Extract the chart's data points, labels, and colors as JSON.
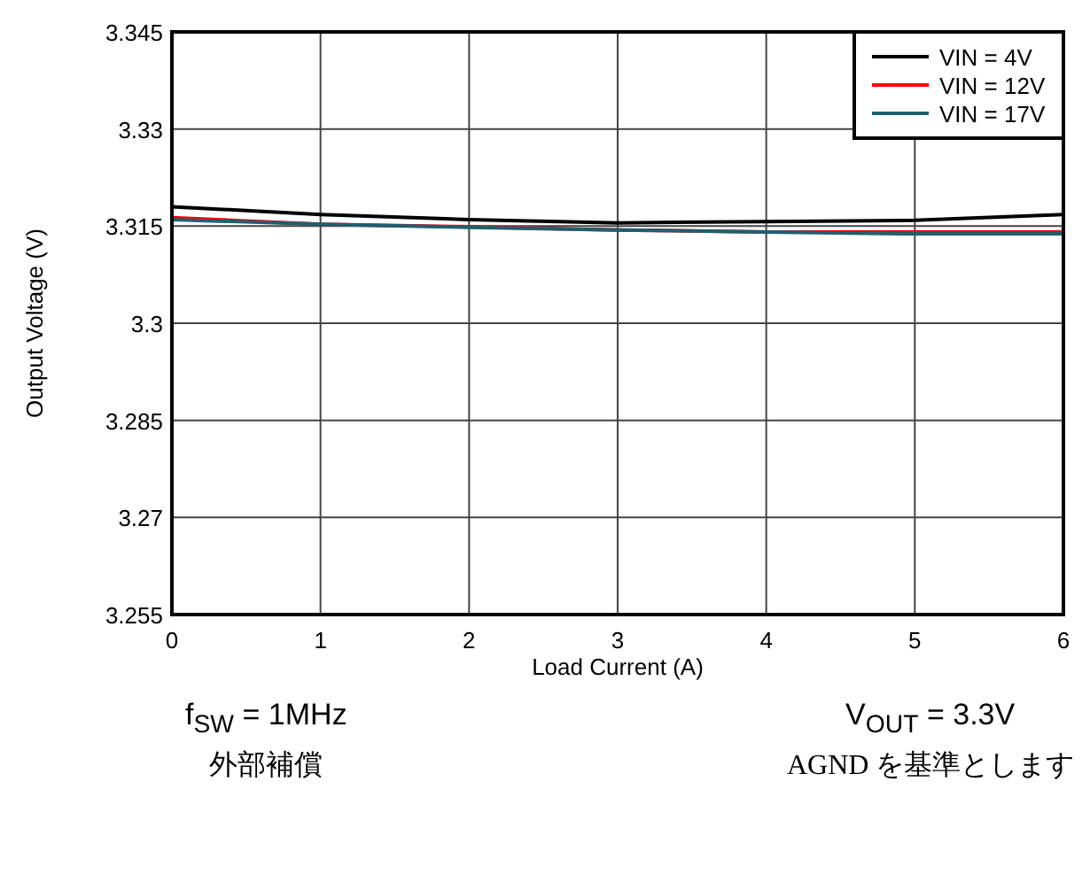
{
  "chart_data": {
    "type": "line",
    "xlabel": "Load Current (A)",
    "ylabel": "Output Voltage (V)",
    "x": [
      0,
      1,
      2,
      3,
      4,
      5,
      6
    ],
    "series": [
      {
        "name": "VIN = 4V",
        "color": "#000000",
        "values": [
          3.318,
          3.3168,
          3.316,
          3.3155,
          3.3157,
          3.3159,
          3.3168
        ]
      },
      {
        "name": "VIN = 12V",
        "color": "#ff0000",
        "values": [
          3.3163,
          3.3153,
          3.3149,
          3.3144,
          3.3141,
          3.3141,
          3.3141
        ]
      },
      {
        "name": "VIN = 17V",
        "color": "#1f5f6f",
        "values": [
          3.316,
          3.3153,
          3.3148,
          3.3144,
          3.3141,
          3.3138,
          3.3138
        ]
      }
    ],
    "xlim": [
      0,
      6
    ],
    "xticks": [
      0,
      1,
      2,
      3,
      4,
      5,
      6
    ],
    "ylim": [
      3.255,
      3.345
    ],
    "yticks": [
      3.255,
      3.27,
      3.285,
      3.3,
      3.315,
      3.33,
      3.345
    ],
    "grid": true,
    "legend": "top right",
    "marker": "none",
    "line_style": "solid",
    "annotations": [
      "f$_{SW}$ = 1MHz",
      "外部補償",
      "V$_{OUT}$ = 3.3V",
      "AGND を基準とします"
    ]
  }
}
